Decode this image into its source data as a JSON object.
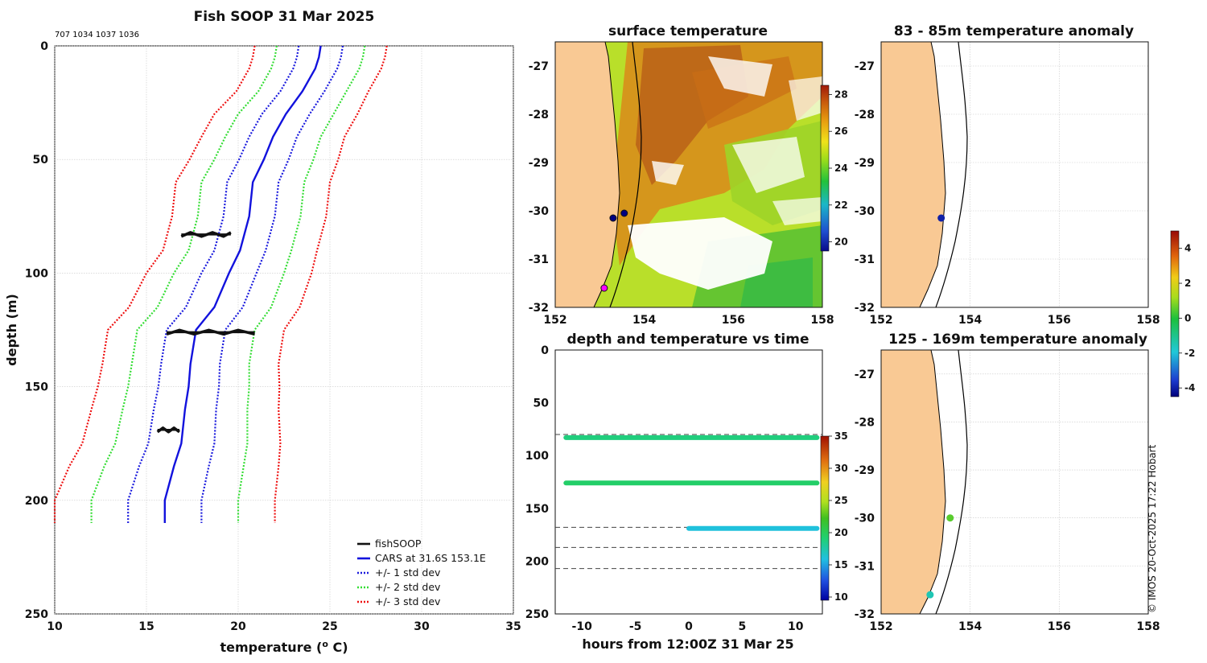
{
  "chart_data": [
    {
      "type": "line",
      "title": "Fish SOOP 31 Mar 2025",
      "subtitle": "707 1034 1037 1036",
      "xlabel": "temperature (",
      "xlabel_sup": "o",
      "xlabel_end": " C)",
      "ylabel": "depth (m)",
      "xlim": [
        10,
        35
      ],
      "ylim": [
        250,
        0
      ],
      "xticks": [
        "10",
        "15",
        "20",
        "25",
        "30",
        "35"
      ],
      "yticks": [
        "0",
        "50",
        "100",
        "150",
        "200",
        "250"
      ],
      "legend": [
        "fishSOOP",
        "CARS at 31.6S 153.1E",
        "+/- 1 std dev",
        "+/- 2 std dev",
        "+/- 3 std dev"
      ],
      "depth": [
        0,
        5,
        10,
        20,
        30,
        40,
        50,
        60,
        75,
        90,
        100,
        115,
        125,
        140,
        150,
        160,
        175,
        185,
        200,
        210
      ],
      "cars_mean": [
        24.5,
        24.4,
        24.2,
        23.5,
        22.6,
        21.9,
        21.4,
        20.8,
        20.6,
        20.1,
        19.5,
        18.7,
        17.7,
        17.4,
        17.3,
        17.1,
        16.9,
        16.5,
        16.0,
        16.0
      ],
      "std_dev": [
        1.2,
        1.2,
        1.2,
        1.2,
        1.3,
        1.3,
        1.35,
        1.4,
        1.4,
        1.4,
        1.5,
        1.55,
        1.6,
        1.6,
        1.65,
        1.7,
        1.8,
        1.9,
        2.0,
        2.0
      ],
      "fishSOOP_segments": [
        {
          "depth": 83,
          "temps": [
            16.9,
            17.4,
            18.0,
            18.6,
            19.2,
            19.6
          ]
        },
        {
          "depth": 126,
          "temps": [
            16.1,
            16.8,
            17.6,
            18.4,
            19.2,
            20.0,
            20.9
          ]
        },
        {
          "depth": 169,
          "temps": [
            15.6,
            15.9,
            16.2,
            16.5,
            16.8
          ]
        }
      ]
    },
    {
      "type": "heatmap",
      "title": "surface temperature",
      "xlim": [
        152,
        158
      ],
      "ylim": [
        -32,
        -26.5
      ],
      "xticks": [
        "152",
        "154",
        "156",
        "158"
      ],
      "yticks": [
        "-27",
        "-28",
        "-29",
        "-30",
        "-31",
        "-32"
      ],
      "colorbar_ticks": [
        "28",
        "26",
        "24",
        "22",
        "20"
      ],
      "colorbar_range": [
        19.5,
        28.5
      ],
      "markers": [
        {
          "lon": 153.3,
          "lat": -30.15,
          "color": "#000080"
        },
        {
          "lon": 153.55,
          "lat": -30.05,
          "color": "#000080"
        },
        {
          "lon": 153.1,
          "lat": -31.6,
          "color": "#ff00ff"
        }
      ]
    },
    {
      "type": "scatter",
      "title": "depth and temperature vs time",
      "xlabel": "hours from 12:00Z 31 Mar 25",
      "xlim": [
        -12.5,
        12.5
      ],
      "ylim": [
        250,
        0
      ],
      "xticks": [
        "-10",
        "-5",
        "0",
        "5",
        "10"
      ],
      "yticks": [
        "0",
        "50",
        "100",
        "150",
        "200",
        "250"
      ],
      "colorbar_ticks": [
        "35",
        "30",
        "25",
        "20",
        "15",
        "10"
      ],
      "colorbar_range": [
        9.5,
        35
      ],
      "dashed_depths": [
        80,
        168,
        187,
        207
      ],
      "tracks": [
        {
          "depth": 83,
          "x_start": -11.5,
          "x_end": 12,
          "temp": 18.8
        },
        {
          "depth": 126,
          "x_start": -11.5,
          "x_end": 12,
          "temp": 19.5
        },
        {
          "depth": 169,
          "x_start": 0,
          "x_end": 12,
          "temp": 16.0
        }
      ]
    },
    {
      "type": "scatter",
      "title": "83 - 85m temperature anomaly",
      "xlim": [
        152,
        158
      ],
      "ylim": [
        -32,
        -26.5
      ],
      "xticks": [
        "152",
        "154",
        "156",
        "158"
      ],
      "yticks": [
        "-27",
        "-28",
        "-29",
        "-30",
        "-31",
        "-32"
      ],
      "points": [
        {
          "lon": 153.35,
          "lat": -30.15,
          "anomaly": -4.0
        }
      ]
    },
    {
      "type": "scatter",
      "title": "125 - 169m temperature anomaly",
      "xlim": [
        152,
        158
      ],
      "ylim": [
        -32,
        -26.5
      ],
      "xticks": [
        "152",
        "154",
        "156",
        "158"
      ],
      "yticks": [
        "-27",
        "-28",
        "-29",
        "-30",
        "-31",
        "-32"
      ],
      "points": [
        {
          "lon": 153.55,
          "lat": -30.0,
          "anomaly": 0.5
        },
        {
          "lon": 153.1,
          "lat": -31.6,
          "anomaly": -1.5
        }
      ],
      "colorbar_ticks": [
        "4",
        "2",
        "0",
        "-2",
        "-4"
      ],
      "colorbar_range": [
        -4.5,
        5
      ]
    }
  ],
  "credit": "© IMOS 20-Oct-2025 17:22 Hobart"
}
